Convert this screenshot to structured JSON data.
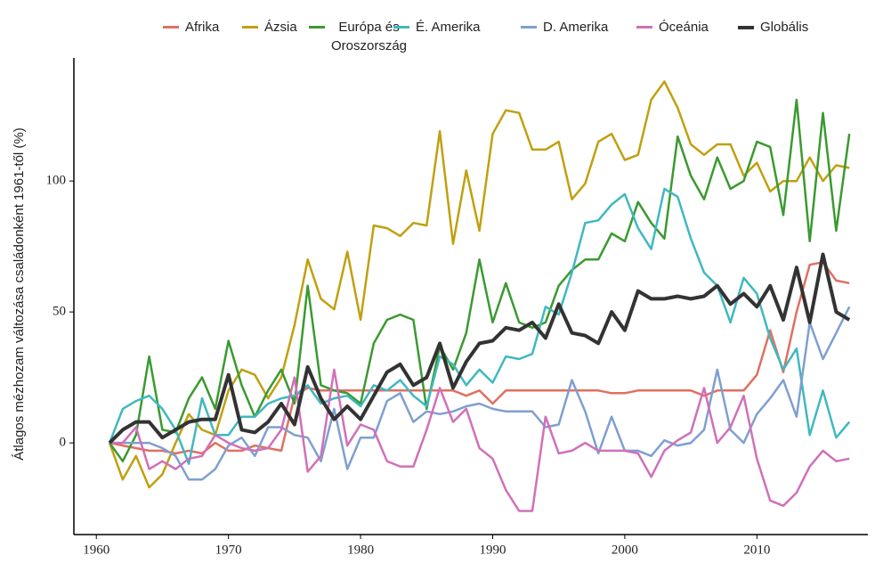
{
  "chart_data": {
    "type": "line",
    "y_label": "Átlagos mézhozam változása családonként 1961-től (%)",
    "x": [
      1961,
      1962,
      1963,
      1964,
      1965,
      1966,
      1967,
      1968,
      1969,
      1970,
      1971,
      1972,
      1973,
      1974,
      1975,
      1976,
      1977,
      1978,
      1979,
      1980,
      1981,
      1982,
      1983,
      1984,
      1985,
      1986,
      1987,
      1988,
      1989,
      1990,
      1991,
      1992,
      1993,
      1994,
      1995,
      1996,
      1997,
      1998,
      1999,
      2000,
      2001,
      2002,
      2003,
      2004,
      2005,
      2006,
      2007,
      2008,
      2009,
      2010,
      2011,
      2012,
      2013,
      2014,
      2015,
      2016,
      2017
    ],
    "xlim": [
      1958.3,
      2018.4
    ],
    "xticks": [
      1960,
      1970,
      1980,
      1990,
      2000,
      2010
    ],
    "ylim": [
      -35,
      147
    ],
    "yticks": [
      0,
      50,
      100
    ],
    "grid": false,
    "legend": "top",
    "series": [
      {
        "name": "Afrika",
        "color": "#e07060",
        "values": [
          0,
          -1,
          -2,
          -3,
          -3,
          -4,
          -3,
          -4,
          0,
          -3,
          -3,
          -1,
          -2,
          -3,
          18,
          21,
          20,
          20,
          20,
          20,
          20,
          20,
          20,
          20,
          20,
          20,
          20,
          18,
          20,
          15,
          20,
          20,
          20,
          20,
          20,
          20,
          20,
          20,
          19,
          19,
          20,
          20,
          20,
          20,
          20,
          18,
          20,
          20,
          20,
          26,
          43,
          27,
          50,
          68,
          69,
          62,
          61
        ]
      },
      {
        "name": "Ázsia",
        "color": "#c0a010",
        "values": [
          0,
          -14,
          -5,
          -17,
          -12,
          0,
          11,
          5,
          3,
          20,
          28,
          26,
          17,
          25,
          45,
          70,
          55,
          51,
          73,
          47,
          83,
          82,
          79,
          84,
          83,
          119,
          76,
          104,
          81,
          118,
          127,
          126,
          112,
          112,
          115,
          93,
          99,
          115,
          118,
          108,
          110,
          131,
          138,
          128,
          114,
          110,
          114,
          114,
          102,
          107,
          96,
          100,
          100,
          109,
          100,
          106,
          105
        ]
      },
      {
        "name": "Európa és Oroszország",
        "color": "#3a9a30",
        "values": [
          0,
          -7,
          3,
          33,
          5,
          4,
          17,
          25,
          13,
          39,
          22,
          10,
          20,
          28,
          15,
          60,
          22,
          20,
          19,
          15,
          38,
          47,
          49,
          47,
          13,
          37,
          28,
          42,
          70,
          46,
          61,
          46,
          44,
          46,
          60,
          66,
          70,
          70,
          80,
          77,
          92,
          84,
          78,
          117,
          102,
          93,
          109,
          97,
          100,
          115,
          113,
          87,
          131,
          77,
          126,
          81,
          118
        ]
      },
      {
        "name": "É. Amerika",
        "color": "#40b8c0",
        "values": [
          0,
          13,
          16,
          18,
          13,
          5,
          -8,
          17,
          3,
          3,
          10,
          10,
          15,
          17,
          18,
          22,
          15,
          17,
          18,
          14,
          22,
          20,
          24,
          18,
          14,
          33,
          30,
          22,
          28,
          23,
          33,
          32,
          34,
          52,
          49,
          65,
          84,
          85,
          91,
          95,
          82,
          74,
          97,
          94,
          78,
          65,
          60,
          46,
          63,
          57,
          40,
          28,
          36,
          3,
          20,
          2,
          8
        ]
      },
      {
        "name": "D. Amerika",
        "color": "#7f9fd0",
        "values": [
          0,
          0,
          0,
          0,
          -2,
          -5,
          -14,
          -14,
          -10,
          -1,
          2,
          -5,
          6,
          6,
          3,
          2,
          -7,
          13,
          -10,
          2,
          2,
          16,
          19,
          8,
          12,
          11,
          12,
          14,
          15,
          13,
          12,
          12,
          12,
          6,
          7,
          24,
          12,
          -4,
          10,
          -3,
          -3,
          -5,
          1,
          -1,
          0,
          5,
          28,
          5,
          0,
          11,
          17,
          24,
          10,
          46,
          32,
          42,
          52
        ]
      },
      {
        "name": "Óceánia",
        "color": "#d070b8",
        "values": [
          0,
          0,
          6,
          -10,
          -7,
          -10,
          -6,
          -5,
          3,
          0,
          -2,
          -3,
          -2,
          5,
          25,
          -11,
          -5,
          28,
          -1,
          7,
          5,
          -7,
          -9,
          -9,
          5,
          21,
          8,
          13,
          -2,
          -6,
          -18,
          -26,
          -26,
          10,
          -4,
          -3,
          0,
          -3,
          -3,
          -3,
          -4,
          -13,
          -3,
          1,
          4,
          21,
          0,
          6,
          18,
          -6,
          -22,
          -24,
          -19,
          -9,
          -3,
          -7,
          -6
        ]
      },
      {
        "name": "Globális",
        "color": "#333333",
        "values": [
          0,
          5,
          8,
          8,
          2,
          5,
          8,
          9,
          9,
          26,
          5,
          4,
          8,
          15,
          7,
          29,
          17,
          9,
          14,
          9,
          18,
          27,
          30,
          22,
          25,
          38,
          21,
          31,
          38,
          39,
          44,
          43,
          46,
          40,
          53,
          42,
          41,
          38,
          50,
          43,
          58,
          55,
          55,
          56,
          55,
          56,
          60,
          53,
          57,
          52,
          60,
          47,
          67,
          46,
          72,
          50,
          47
        ]
      }
    ]
  }
}
